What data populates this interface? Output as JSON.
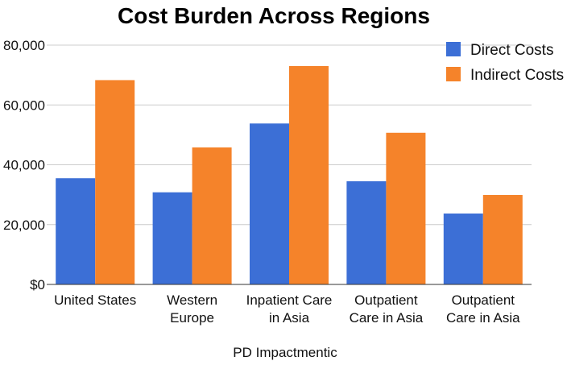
{
  "chart_data": {
    "type": "bar",
    "title": "Cost Burden Across Regions",
    "xlabel": "PD Impactmentic",
    "ylabel": "",
    "ylim": [
      0,
      80000
    ],
    "yticks": [
      0,
      20000,
      40000,
      60000,
      80000
    ],
    "ytick_labels": [
      "$0",
      "20,000",
      "40,000",
      "60,000",
      "80,000"
    ],
    "grid": true,
    "legend_position": "top-right",
    "categories": [
      [
        "United States"
      ],
      [
        "Western",
        "Europe"
      ],
      [
        "Inpatient Care",
        "in Asia"
      ],
      [
        "Outpatient",
        "Care in Asia"
      ],
      [
        "Outpatient",
        "Care in Asia"
      ]
    ],
    "series": [
      {
        "name": "Direct Costs",
        "color": "#3c6fd6",
        "values": [
          35500,
          30800,
          53800,
          34500,
          23700
        ]
      },
      {
        "name": "Indirect Costs",
        "color": "#f5832a",
        "values": [
          68300,
          45800,
          73000,
          50700,
          29900
        ]
      }
    ]
  }
}
